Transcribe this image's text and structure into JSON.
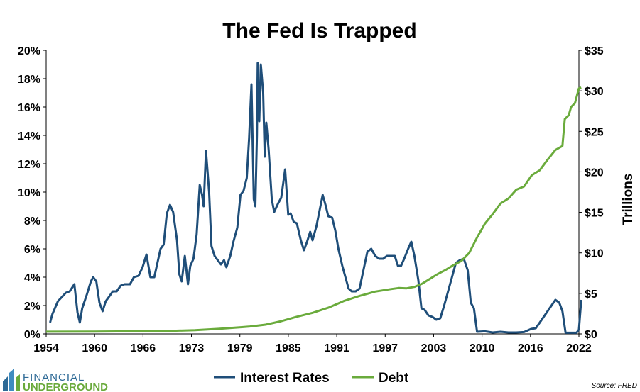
{
  "chart_data": {
    "type": "line",
    "title": "The Fed Is Trapped",
    "xlabel": "",
    "ylabel_left": "",
    "ylabel_right": "Trillions",
    "x_ticks": [
      "1954",
      "1960",
      "1966",
      "1973",
      "1979",
      "1985",
      "1991",
      "1997",
      "2003",
      "2010",
      "2016",
      "2022"
    ],
    "xlim": [
      1954,
      2022
    ],
    "y_left_ticks": [
      "0%",
      "2%",
      "4%",
      "6%",
      "8%",
      "10%",
      "12%",
      "14%",
      "16%",
      "18%",
      "20%"
    ],
    "ylim_left": [
      0,
      20
    ],
    "y_right_ticks": [
      "$0",
      "$5",
      "$10",
      "$15",
      "$20",
      "$25",
      "$30",
      "$35"
    ],
    "ylim_right": [
      0,
      35
    ],
    "legend_position": "bottom-center",
    "source": "Source: FRED",
    "series": [
      {
        "name": "Interest Rates",
        "axis": "left",
        "color": "#1f4e79",
        "points": [
          [
            1954.5,
            0.8
          ],
          [
            1954.8,
            1.4
          ],
          [
            1955.5,
            2.3
          ],
          [
            1956,
            2.6
          ],
          [
            1956.5,
            2.9
          ],
          [
            1957,
            3.0
          ],
          [
            1957.6,
            3.5
          ],
          [
            1958.0,
            1.5
          ],
          [
            1958.3,
            0.8
          ],
          [
            1958.6,
            1.8
          ],
          [
            1959.2,
            2.8
          ],
          [
            1959.7,
            3.7
          ],
          [
            1960.0,
            4.0
          ],
          [
            1960.4,
            3.7
          ],
          [
            1960.8,
            2.2
          ],
          [
            1961.2,
            1.6
          ],
          [
            1961.6,
            2.3
          ],
          [
            1962.0,
            2.6
          ],
          [
            1962.5,
            3.0
          ],
          [
            1963.0,
            3.0
          ],
          [
            1963.5,
            3.4
          ],
          [
            1964.0,
            3.5
          ],
          [
            1964.7,
            3.5
          ],
          [
            1965.2,
            4.0
          ],
          [
            1965.8,
            4.1
          ],
          [
            1966.3,
            4.7
          ],
          [
            1966.8,
            5.6
          ],
          [
            1967.3,
            4.0
          ],
          [
            1967.8,
            4.0
          ],
          [
            1968.2,
            5.0
          ],
          [
            1968.6,
            6.0
          ],
          [
            1969.0,
            6.3
          ],
          [
            1969.4,
            8.5
          ],
          [
            1969.8,
            9.1
          ],
          [
            1970.2,
            8.6
          ],
          [
            1970.7,
            6.6
          ],
          [
            1971.0,
            4.2
          ],
          [
            1971.3,
            3.7
          ],
          [
            1971.7,
            5.5
          ],
          [
            1972.1,
            3.5
          ],
          [
            1972.4,
            4.8
          ],
          [
            1972.8,
            5.3
          ],
          [
            1973.2,
            7.0
          ],
          [
            1973.6,
            10.5
          ],
          [
            1973.9,
            9.8
          ],
          [
            1974.1,
            9.0
          ],
          [
            1974.4,
            12.9
          ],
          [
            1974.8,
            10.0
          ],
          [
            1975.1,
            6.2
          ],
          [
            1975.5,
            5.5
          ],
          [
            1975.9,
            5.2
          ],
          [
            1976.3,
            4.9
          ],
          [
            1976.7,
            5.2
          ],
          [
            1977.0,
            4.7
          ],
          [
            1977.5,
            5.5
          ],
          [
            1977.9,
            6.5
          ],
          [
            1978.4,
            7.5
          ],
          [
            1978.8,
            9.8
          ],
          [
            1979.2,
            10.1
          ],
          [
            1979.6,
            11.0
          ],
          [
            1979.9,
            13.8
          ],
          [
            1980.2,
            17.6
          ],
          [
            1980.5,
            9.5
          ],
          [
            1980.7,
            9.0
          ],
          [
            1980.9,
            14.0
          ],
          [
            1981.0,
            19.1
          ],
          [
            1981.2,
            15.0
          ],
          [
            1981.4,
            19.0
          ],
          [
            1981.7,
            17.0
          ],
          [
            1981.9,
            12.5
          ],
          [
            1982.1,
            14.9
          ],
          [
            1982.4,
            13.0
          ],
          [
            1982.8,
            9.5
          ],
          [
            1983.1,
            8.6
          ],
          [
            1983.6,
            9.2
          ],
          [
            1984.0,
            9.6
          ],
          [
            1984.5,
            11.6
          ],
          [
            1984.9,
            8.4
          ],
          [
            1985.2,
            8.5
          ],
          [
            1985.6,
            7.9
          ],
          [
            1986.0,
            7.8
          ],
          [
            1986.5,
            6.6
          ],
          [
            1986.9,
            5.9
          ],
          [
            1987.3,
            6.5
          ],
          [
            1987.7,
            7.2
          ],
          [
            1988.0,
            6.6
          ],
          [
            1988.5,
            7.6
          ],
          [
            1988.9,
            8.7
          ],
          [
            1989.3,
            9.8
          ],
          [
            1989.7,
            9.0
          ],
          [
            1990.0,
            8.3
          ],
          [
            1990.5,
            8.2
          ],
          [
            1990.9,
            7.3
          ],
          [
            1991.3,
            6.0
          ],
          [
            1991.8,
            4.8
          ],
          [
            1992.2,
            4.0
          ],
          [
            1992.6,
            3.2
          ],
          [
            1993.0,
            3.0
          ],
          [
            1993.5,
            3.0
          ],
          [
            1994.0,
            3.2
          ],
          [
            1994.5,
            4.5
          ],
          [
            1995.0,
            5.8
          ],
          [
            1995.5,
            6.0
          ],
          [
            1996.0,
            5.5
          ],
          [
            1996.5,
            5.3
          ],
          [
            1997.0,
            5.3
          ],
          [
            1997.5,
            5.5
          ],
          [
            1998.0,
            5.5
          ],
          [
            1998.5,
            5.5
          ],
          [
            1998.9,
            4.8
          ],
          [
            1999.3,
            4.8
          ],
          [
            1999.7,
            5.3
          ],
          [
            2000.2,
            6.0
          ],
          [
            2000.6,
            6.5
          ],
          [
            2001.0,
            5.5
          ],
          [
            2001.5,
            3.8
          ],
          [
            2001.9,
            1.8
          ],
          [
            2002.3,
            1.7
          ],
          [
            2002.8,
            1.3
          ],
          [
            2003.3,
            1.2
          ],
          [
            2003.8,
            1.0
          ],
          [
            2004.3,
            1.1
          ],
          [
            2004.8,
            2.0
          ],
          [
            2005.3,
            3.0
          ],
          [
            2005.8,
            4.0
          ],
          [
            2006.3,
            5.0
          ],
          [
            2006.8,
            5.2
          ],
          [
            2007.3,
            5.3
          ],
          [
            2007.8,
            4.5
          ],
          [
            2008.2,
            2.2
          ],
          [
            2008.6,
            1.8
          ],
          [
            2009.0,
            0.15
          ],
          [
            2010,
            0.18
          ],
          [
            2011,
            0.1
          ],
          [
            2012,
            0.15
          ],
          [
            2013,
            0.1
          ],
          [
            2014,
            0.1
          ],
          [
            2015,
            0.13
          ],
          [
            2015.9,
            0.35
          ],
          [
            2016.5,
            0.4
          ],
          [
            2017,
            0.8
          ],
          [
            2017.5,
            1.2
          ],
          [
            2018,
            1.6
          ],
          [
            2018.5,
            2.0
          ],
          [
            2019,
            2.4
          ],
          [
            2019.5,
            2.2
          ],
          [
            2019.9,
            1.6
          ],
          [
            2020.3,
            0.08
          ],
          [
            2021,
            0.08
          ],
          [
            2021.7,
            0.08
          ],
          [
            2022.0,
            0.3
          ],
          [
            2022.3,
            2.4
          ]
        ]
      },
      {
        "name": "Debt",
        "axis": "right",
        "color": "#6aab3c",
        "points": [
          [
            1954,
            0.27
          ],
          [
            1960,
            0.29
          ],
          [
            1966,
            0.32
          ],
          [
            1970,
            0.38
          ],
          [
            1973,
            0.46
          ],
          [
            1976,
            0.62
          ],
          [
            1979,
            0.83
          ],
          [
            1980,
            0.91
          ],
          [
            1982,
            1.14
          ],
          [
            1984,
            1.57
          ],
          [
            1986,
            2.12
          ],
          [
            1988,
            2.6
          ],
          [
            1990,
            3.23
          ],
          [
            1992,
            4.06
          ],
          [
            1994,
            4.69
          ],
          [
            1996,
            5.22
          ],
          [
            1998,
            5.53
          ],
          [
            1999,
            5.66
          ],
          [
            2000,
            5.63
          ],
          [
            2001,
            5.8
          ],
          [
            2002,
            6.2
          ],
          [
            2003,
            6.8
          ],
          [
            2004,
            7.4
          ],
          [
            2005,
            7.9
          ],
          [
            2006,
            8.5
          ],
          [
            2007,
            9.0
          ],
          [
            2008,
            10.0
          ],
          [
            2009,
            11.9
          ],
          [
            2010,
            13.6
          ],
          [
            2011,
            14.8
          ],
          [
            2012,
            16.1
          ],
          [
            2013,
            16.7
          ],
          [
            2014,
            17.8
          ],
          [
            2015,
            18.2
          ],
          [
            2016,
            19.6
          ],
          [
            2017,
            20.2
          ],
          [
            2018,
            21.5
          ],
          [
            2019,
            22.7
          ],
          [
            2019.9,
            23.2
          ],
          [
            2020.2,
            26.5
          ],
          [
            2020.7,
            27.0
          ],
          [
            2021,
            28.0
          ],
          [
            2021.5,
            28.5
          ],
          [
            2021.8,
            29.6
          ],
          [
            2022,
            30.3
          ],
          [
            2022.3,
            30.4
          ]
        ]
      }
    ]
  },
  "branding": {
    "logo_line1": "FINANCIAL",
    "logo_line2": "UNDERGROUND"
  }
}
